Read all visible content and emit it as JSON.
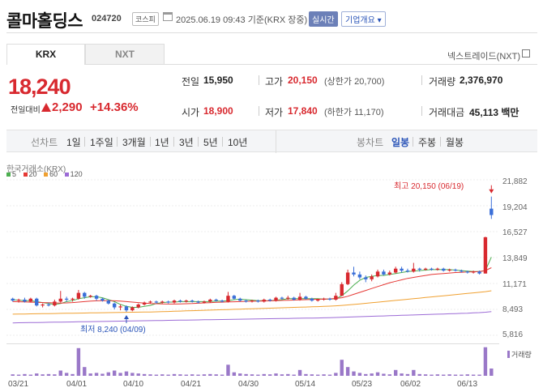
{
  "header": {
    "name": "콜마홀딩스",
    "code": "024720",
    "market": "코스피",
    "datetime": "2025.06.19 09:43",
    "basis": "기준(KRX 장중)",
    "realtime": "실시간",
    "company_info": "기업개요 ▾"
  },
  "tabs": {
    "krx": "KRX",
    "nxt": "NXT",
    "nextrade_link": "넥스트레이드(NXT)"
  },
  "price": {
    "current": "18,240",
    "change_label": "전일대비",
    "change": "2,290",
    "change_pct": "+14.36%"
  },
  "quote": {
    "prev_label": "전일",
    "prev": "15,950",
    "high_label": "고가",
    "high": "20,150",
    "upper_limit": "(상한가 20,700)",
    "volume_label": "거래량",
    "volume": "2,376,970",
    "open_label": "시가",
    "open": "18,900",
    "low_label": "저가",
    "low": "17,840",
    "lower_limit": "(하한가 11,170)",
    "amount_label": "거래대금",
    "amount": "45,113",
    "amount_unit": "백만"
  },
  "nav": {
    "line_chart_label": "선차트",
    "periods": [
      "1일",
      "1주일",
      "3개월",
      "1년",
      "3년",
      "5년",
      "10년"
    ],
    "candle_label": "봉차트",
    "candle_periods": [
      "일봉",
      "주봉",
      "월봉"
    ],
    "candle_active": "일봉"
  },
  "chart_meta": {
    "source": "한국거래소(KRX)",
    "ma_legend": [
      {
        "label": "5",
        "color": "#4caf50"
      },
      {
        "label": "20",
        "color": "#e53935"
      },
      {
        "label": "60",
        "color": "#f0a030"
      },
      {
        "label": "120",
        "color": "#9c6bd6"
      }
    ],
    "high_annotation": "최고 20,150 (06/19)",
    "low_annotation": "최저 8,240 (04/09)",
    "volume_label": "거래량"
  },
  "chart_data": {
    "type": "candlestick",
    "y_ticks": [
      "21,882",
      "19,204",
      "16,527",
      "13,849",
      "11,171",
      "8,493",
      "5,816"
    ],
    "ylim": [
      5816,
      21882
    ],
    "x_ticks": [
      "03/21",
      "04/01",
      "04/10",
      "04/21",
      "04/30",
      "05/14",
      "05/23",
      "06/02",
      "06/13"
    ],
    "colors": {
      "up": "#d8292f",
      "down": "#3a6fd8"
    },
    "candles": [
      {
        "o": 9600,
        "c": 9400,
        "h": 9700,
        "l": 9300
      },
      {
        "o": 9400,
        "c": 9500,
        "h": 9600,
        "l": 9200
      },
      {
        "o": 9500,
        "c": 9300,
        "h": 9700,
        "l": 9200
      },
      {
        "o": 9300,
        "c": 9600,
        "h": 9700,
        "l": 9200
      },
      {
        "o": 9600,
        "c": 8900,
        "h": 9700,
        "l": 8800
      },
      {
        "o": 8900,
        "c": 9000,
        "h": 9100,
        "l": 8700
      },
      {
        "o": 9000,
        "c": 8900,
        "h": 9200,
        "l": 8800
      },
      {
        "o": 8900,
        "c": 9300,
        "h": 9500,
        "l": 8800
      },
      {
        "o": 9300,
        "c": 9600,
        "h": 10400,
        "l": 9200
      },
      {
        "o": 9600,
        "c": 9500,
        "h": 9800,
        "l": 9300
      },
      {
        "o": 9500,
        "c": 9600,
        "h": 9700,
        "l": 9300
      },
      {
        "o": 9600,
        "c": 10200,
        "h": 10500,
        "l": 9500
      },
      {
        "o": 10200,
        "c": 9800,
        "h": 10300,
        "l": 9600
      },
      {
        "o": 9800,
        "c": 9900,
        "h": 10000,
        "l": 9700
      },
      {
        "o": 9900,
        "c": 9600,
        "h": 10000,
        "l": 9400
      },
      {
        "o": 9600,
        "c": 9400,
        "h": 9700,
        "l": 9300
      },
      {
        "o": 9400,
        "c": 9100,
        "h": 9500,
        "l": 9000
      },
      {
        "o": 9100,
        "c": 8700,
        "h": 9200,
        "l": 8500
      },
      {
        "o": 8700,
        "c": 8800,
        "h": 9000,
        "l": 8400
      },
      {
        "o": 8800,
        "c": 8400,
        "h": 8900,
        "l": 8240
      },
      {
        "o": 8400,
        "c": 8700,
        "h": 8800,
        "l": 8300
      },
      {
        "o": 8700,
        "c": 9000,
        "h": 9100,
        "l": 8600
      },
      {
        "o": 9000,
        "c": 9200,
        "h": 9300,
        "l": 8900
      },
      {
        "o": 9200,
        "c": 9300,
        "h": 9400,
        "l": 9100
      },
      {
        "o": 9300,
        "c": 9200,
        "h": 9400,
        "l": 9100
      },
      {
        "o": 9200,
        "c": 9300,
        "h": 9400,
        "l": 9100
      },
      {
        "o": 9300,
        "c": 9200,
        "h": 9400,
        "l": 9100
      },
      {
        "o": 9200,
        "c": 9400,
        "h": 9500,
        "l": 9100
      },
      {
        "o": 9400,
        "c": 9300,
        "h": 9500,
        "l": 9200
      },
      {
        "o": 9300,
        "c": 9400,
        "h": 9500,
        "l": 9200
      },
      {
        "o": 9400,
        "c": 9300,
        "h": 9500,
        "l": 9200
      },
      {
        "o": 9300,
        "c": 9200,
        "h": 9400,
        "l": 9100
      },
      {
        "o": 9200,
        "c": 9300,
        "h": 9400,
        "l": 9100
      },
      {
        "o": 9300,
        "c": 9500,
        "h": 9600,
        "l": 9200
      },
      {
        "o": 9500,
        "c": 9400,
        "h": 9600,
        "l": 9300
      },
      {
        "o": 9400,
        "c": 9300,
        "h": 9500,
        "l": 9200
      },
      {
        "o": 9300,
        "c": 9900,
        "h": 10300,
        "l": 9200
      },
      {
        "o": 9900,
        "c": 9600,
        "h": 10000,
        "l": 9500
      },
      {
        "o": 9600,
        "c": 9400,
        "h": 9700,
        "l": 9300
      },
      {
        "o": 9400,
        "c": 9300,
        "h": 9500,
        "l": 9200
      },
      {
        "o": 9300,
        "c": 9400,
        "h": 9500,
        "l": 9200
      },
      {
        "o": 9400,
        "c": 9300,
        "h": 9500,
        "l": 9200
      },
      {
        "o": 9300,
        "c": 9500,
        "h": 9600,
        "l": 9200
      },
      {
        "o": 9500,
        "c": 9400,
        "h": 9600,
        "l": 9300
      },
      {
        "o": 9400,
        "c": 9700,
        "h": 9800,
        "l": 9300
      },
      {
        "o": 9700,
        "c": 9600,
        "h": 9800,
        "l": 9500
      },
      {
        "o": 9600,
        "c": 9700,
        "h": 9900,
        "l": 9500
      },
      {
        "o": 9700,
        "c": 9500,
        "h": 9800,
        "l": 9400
      },
      {
        "o": 9500,
        "c": 9800,
        "h": 10200,
        "l": 9400
      },
      {
        "o": 9800,
        "c": 9600,
        "h": 9900,
        "l": 9500
      },
      {
        "o": 9600,
        "c": 9400,
        "h": 9700,
        "l": 9300
      },
      {
        "o": 9400,
        "c": 9500,
        "h": 9600,
        "l": 9300
      },
      {
        "o": 9500,
        "c": 9600,
        "h": 9700,
        "l": 9400
      },
      {
        "o": 9600,
        "c": 9500,
        "h": 9700,
        "l": 9400
      },
      {
        "o": 9500,
        "c": 9900,
        "h": 10200,
        "l": 9400
      },
      {
        "o": 9900,
        "c": 11100,
        "h": 11300,
        "l": 9900
      },
      {
        "o": 11100,
        "c": 12300,
        "h": 12600,
        "l": 11000
      },
      {
        "o": 12300,
        "c": 12100,
        "h": 12900,
        "l": 11900
      },
      {
        "o": 12100,
        "c": 11800,
        "h": 12400,
        "l": 11600
      },
      {
        "o": 11800,
        "c": 11600,
        "h": 12000,
        "l": 11300
      },
      {
        "o": 11600,
        "c": 11900,
        "h": 12100,
        "l": 11400
      },
      {
        "o": 11900,
        "c": 12400,
        "h": 12600,
        "l": 11800
      },
      {
        "o": 12400,
        "c": 12100,
        "h": 12600,
        "l": 12000
      },
      {
        "o": 12100,
        "c": 12300,
        "h": 12500,
        "l": 12000
      },
      {
        "o": 12300,
        "c": 12700,
        "h": 12900,
        "l": 12200
      },
      {
        "o": 12700,
        "c": 12500,
        "h": 12900,
        "l": 12300
      },
      {
        "o": 12500,
        "c": 12400,
        "h": 12700,
        "l": 12300
      },
      {
        "o": 12400,
        "c": 12700,
        "h": 13300,
        "l": 12300
      },
      {
        "o": 12700,
        "c": 12600,
        "h": 12800,
        "l": 12400
      },
      {
        "o": 12600,
        "c": 12700,
        "h": 12800,
        "l": 12500
      },
      {
        "o": 12700,
        "c": 12600,
        "h": 12800,
        "l": 12500
      },
      {
        "o": 12600,
        "c": 12700,
        "h": 12800,
        "l": 12500
      },
      {
        "o": 12700,
        "c": 12500,
        "h": 12800,
        "l": 12400
      },
      {
        "o": 12500,
        "c": 12600,
        "h": 12700,
        "l": 12400
      },
      {
        "o": 12600,
        "c": 12500,
        "h": 12700,
        "l": 12400
      },
      {
        "o": 12500,
        "c": 12400,
        "h": 12600,
        "l": 12300
      },
      {
        "o": 12400,
        "c": 12300,
        "h": 12500,
        "l": 12200
      },
      {
        "o": 12300,
        "c": 12400,
        "h": 12500,
        "l": 12200
      },
      {
        "o": 12400,
        "c": 12200,
        "h": 12500,
        "l": 12100
      },
      {
        "o": 12200,
        "c": 15950,
        "h": 16000,
        "l": 12200
      },
      {
        "o": 18900,
        "c": 18240,
        "h": 20150,
        "l": 17840
      }
    ],
    "ma": {
      "5": [
        9500,
        9450,
        9400,
        9400,
        9300,
        9200,
        9100,
        9000,
        9100,
        9300,
        9400,
        9600,
        9700,
        9800,
        9800,
        9700,
        9500,
        9300,
        9000,
        8800,
        8700,
        8700,
        8800,
        8900,
        9100,
        9200,
        9250,
        9250,
        9300,
        9300,
        9300,
        9300,
        9300,
        9300,
        9350,
        9350,
        9400,
        9500,
        9550,
        9500,
        9450,
        9400,
        9400,
        9400,
        9450,
        9500,
        9600,
        9600,
        9600,
        9600,
        9600,
        9600,
        9550,
        9550,
        9600,
        9900,
        10400,
        11000,
        11500,
        11800,
        11900,
        12000,
        12000,
        12100,
        12200,
        12300,
        12400,
        12450,
        12500,
        12550,
        12600,
        12600,
        12600,
        12600,
        12550,
        12500,
        12450,
        12400,
        12400,
        12500,
        13900
      ],
      "20": [
        9300,
        9280,
        9260,
        9240,
        9220,
        9200,
        9180,
        9160,
        9150,
        9160,
        9200,
        9250,
        9300,
        9350,
        9380,
        9400,
        9400,
        9380,
        9350,
        9300,
        9250,
        9200,
        9150,
        9100,
        9080,
        9060,
        9050,
        9050,
        9060,
        9080,
        9100,
        9130,
        9160,
        9190,
        9220,
        9240,
        9260,
        9280,
        9300,
        9320,
        9340,
        9350,
        9360,
        9380,
        9400,
        9420,
        9440,
        9460,
        9480,
        9500,
        9520,
        9540,
        9560,
        9580,
        9620,
        9700,
        9850,
        10050,
        10250,
        10450,
        10650,
        10850,
        11050,
        11250,
        11400,
        11550,
        11700,
        11800,
        11900,
        12000,
        12100,
        12150,
        12200,
        12250,
        12300,
        12330,
        12360,
        12380,
        12400,
        12500,
        12800
      ],
      "60": [
        8000,
        8010,
        8020,
        8030,
        8040,
        8050,
        8060,
        8070,
        8080,
        8090,
        8100,
        8110,
        8120,
        8130,
        8140,
        8150,
        8160,
        8170,
        8180,
        8190,
        8200,
        8210,
        8220,
        8230,
        8240,
        8260,
        8280,
        8300,
        8320,
        8340,
        8360,
        8380,
        8400,
        8420,
        8440,
        8460,
        8480,
        8500,
        8520,
        8540,
        8560,
        8580,
        8600,
        8620,
        8640,
        8660,
        8680,
        8700,
        8720,
        8740,
        8760,
        8780,
        8800,
        8830,
        8860,
        8900,
        8950,
        9000,
        9060,
        9120,
        9180,
        9240,
        9300,
        9360,
        9420,
        9480,
        9540,
        9600,
        9660,
        9720,
        9780,
        9840,
        9900,
        9960,
        10020,
        10080,
        10140,
        10200,
        10260,
        10330,
        10420
      ],
      "120": [
        7100,
        7110,
        7120,
        7130,
        7140,
        7150,
        7160,
        7170,
        7180,
        7190,
        7200,
        7210,
        7220,
        7230,
        7240,
        7250,
        7260,
        7270,
        7280,
        7290,
        7300,
        7310,
        7320,
        7330,
        7340,
        7350,
        7360,
        7370,
        7380,
        7390,
        7400,
        7410,
        7420,
        7430,
        7440,
        7450,
        7460,
        7470,
        7480,
        7490,
        7500,
        7510,
        7520,
        7530,
        7540,
        7550,
        7560,
        7570,
        7580,
        7590,
        7600,
        7610,
        7620,
        7640,
        7660,
        7680,
        7700,
        7720,
        7740,
        7760,
        7780,
        7800,
        7820,
        7840,
        7860,
        7880,
        7900,
        7920,
        7940,
        7960,
        7980,
        8000,
        8020,
        8040,
        8060,
        8080,
        8100,
        8130,
        8160,
        8200,
        8260
      ]
    },
    "volume": [
      0.05,
      0.04,
      0.06,
      0.04,
      0.08,
      0.05,
      0.06,
      0.05,
      0.18,
      0.1,
      0.06,
      0.95,
      0.3,
      0.08,
      0.1,
      0.07,
      0.12,
      0.18,
      0.1,
      0.15,
      0.1,
      0.08,
      0.06,
      0.05,
      0.04,
      0.05,
      0.04,
      0.06,
      0.05,
      0.04,
      0.05,
      0.04,
      0.05,
      0.06,
      0.05,
      0.04,
      0.38,
      0.12,
      0.08,
      0.06,
      0.05,
      0.04,
      0.06,
      0.05,
      0.08,
      0.05,
      0.06,
      0.04,
      0.2,
      0.06,
      0.05,
      0.04,
      0.05,
      0.04,
      0.1,
      0.55,
      0.3,
      0.15,
      0.1,
      0.06,
      0.08,
      0.12,
      0.07,
      0.05,
      0.2,
      0.08,
      0.06,
      0.2,
      0.06,
      0.05,
      0.04,
      0.05,
      0.04,
      0.05,
      0.04,
      0.04,
      0.05,
      0.04,
      0.04,
      0.98,
      0.25
    ]
  }
}
